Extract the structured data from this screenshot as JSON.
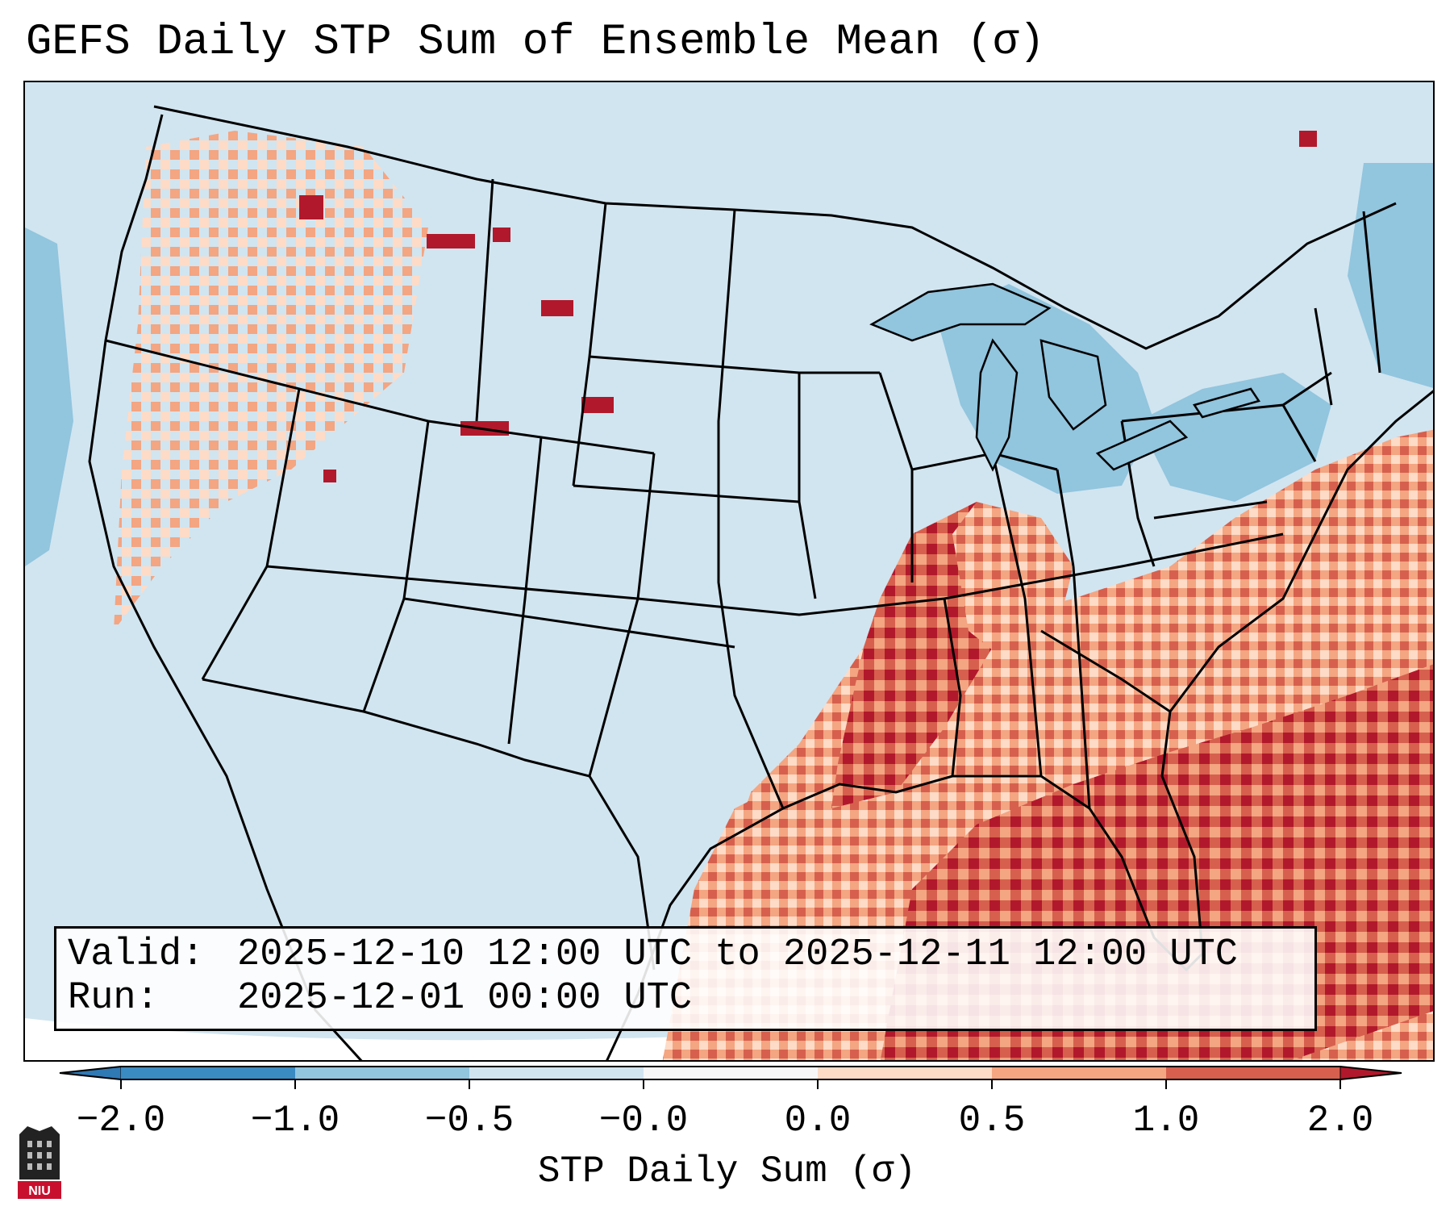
{
  "title": "GEFS Daily STP Sum of Ensemble Mean (σ)",
  "info": {
    "valid_key": "Valid:",
    "valid_value": "2025-12-10 12:00 UTC to 2025-12-11 12:00 UTC",
    "run_key": "Run:",
    "run_value": "2025-12-01 00:00 UTC"
  },
  "colorbar": {
    "label": "STP Daily Sum (σ)",
    "ticks": [
      "−2.0",
      "−1.0",
      "−0.5",
      "−0.0",
      "0.0",
      "0.5",
      "1.0",
      "2.0"
    ],
    "colors": {
      "extend_low": "#2f79b5",
      "neg_2_to_1": "#3a8bc2",
      "neg_1_to_05": "#92c5de",
      "neg_05_to_0": "#d1e5f0",
      "near_zero": "#f7f7f7",
      "pos_0_to_05": "#fddbc7",
      "pos_05_to_1": "#f4a582",
      "pos_1_to_2": "#d6604d",
      "extend_high": "#b2182b"
    }
  },
  "map": {
    "background_color": "#d1e5f0",
    "outside_domain_color": "#ffffff",
    "border_color": "#000000"
  },
  "logo": {
    "text": "NIU"
  }
}
